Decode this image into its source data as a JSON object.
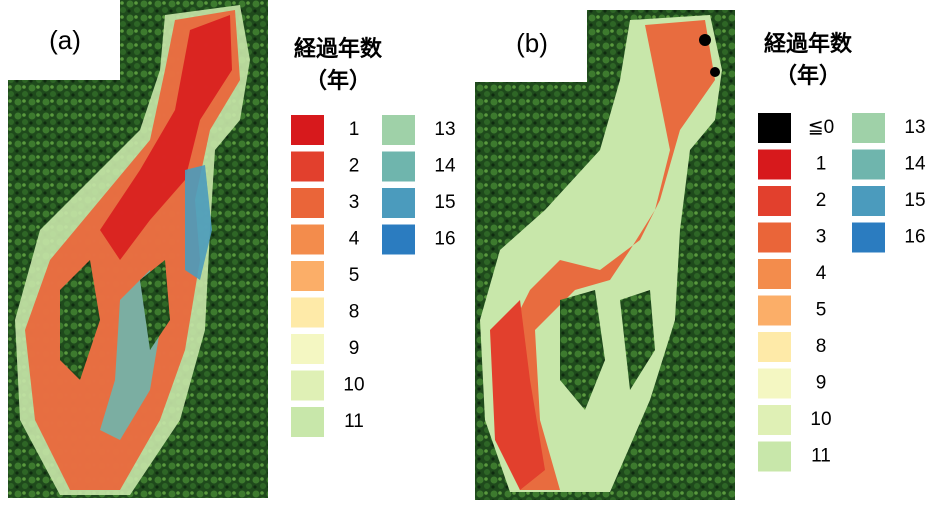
{
  "panels": [
    {
      "label": "(a)",
      "legend_title": [
        "経過年数",
        "（年）"
      ],
      "legend": [
        {
          "label": "1",
          "color": "#d7191c"
        },
        {
          "label": "2",
          "color": "#e2402d"
        },
        {
          "label": "3",
          "color": "#ea6539"
        },
        {
          "label": "4",
          "color": "#f38c4c"
        },
        {
          "label": "5",
          "color": "#fbae68"
        },
        {
          "label": "8",
          "color": "#feeaa8"
        },
        {
          "label": "9",
          "color": "#f4f7c2"
        },
        {
          "label": "10",
          "color": "#dff0b5"
        },
        {
          "label": "11",
          "color": "#c8e7aa"
        },
        {
          "label": "13",
          "color": "#9fd1a8"
        },
        {
          "label": "14",
          "color": "#6fb5ad"
        },
        {
          "label": "15",
          "color": "#4b9bbd"
        },
        {
          "label": "16",
          "color": "#2b7cc0"
        }
      ]
    },
    {
      "label": "(b)",
      "legend_title": [
        "経過年数",
        "（年）"
      ],
      "legend": [
        {
          "label": "≦0",
          "color": "#000000"
        },
        {
          "label": "1",
          "color": "#d7191c"
        },
        {
          "label": "2",
          "color": "#e2402d"
        },
        {
          "label": "3",
          "color": "#ea6539"
        },
        {
          "label": "4",
          "color": "#f38c4c"
        },
        {
          "label": "5",
          "color": "#fbae68"
        },
        {
          "label": "8",
          "color": "#feeaa8"
        },
        {
          "label": "9",
          "color": "#f4f7c2"
        },
        {
          "label": "10",
          "color": "#dff0b5"
        },
        {
          "label": "11",
          "color": "#c8e7aa"
        },
        {
          "label": "13",
          "color": "#9fd1a8"
        },
        {
          "label": "14",
          "color": "#6fb5ad"
        },
        {
          "label": "15",
          "color": "#4b9bbd"
        },
        {
          "label": "16",
          "color": "#2b7cc0"
        }
      ]
    }
  ]
}
